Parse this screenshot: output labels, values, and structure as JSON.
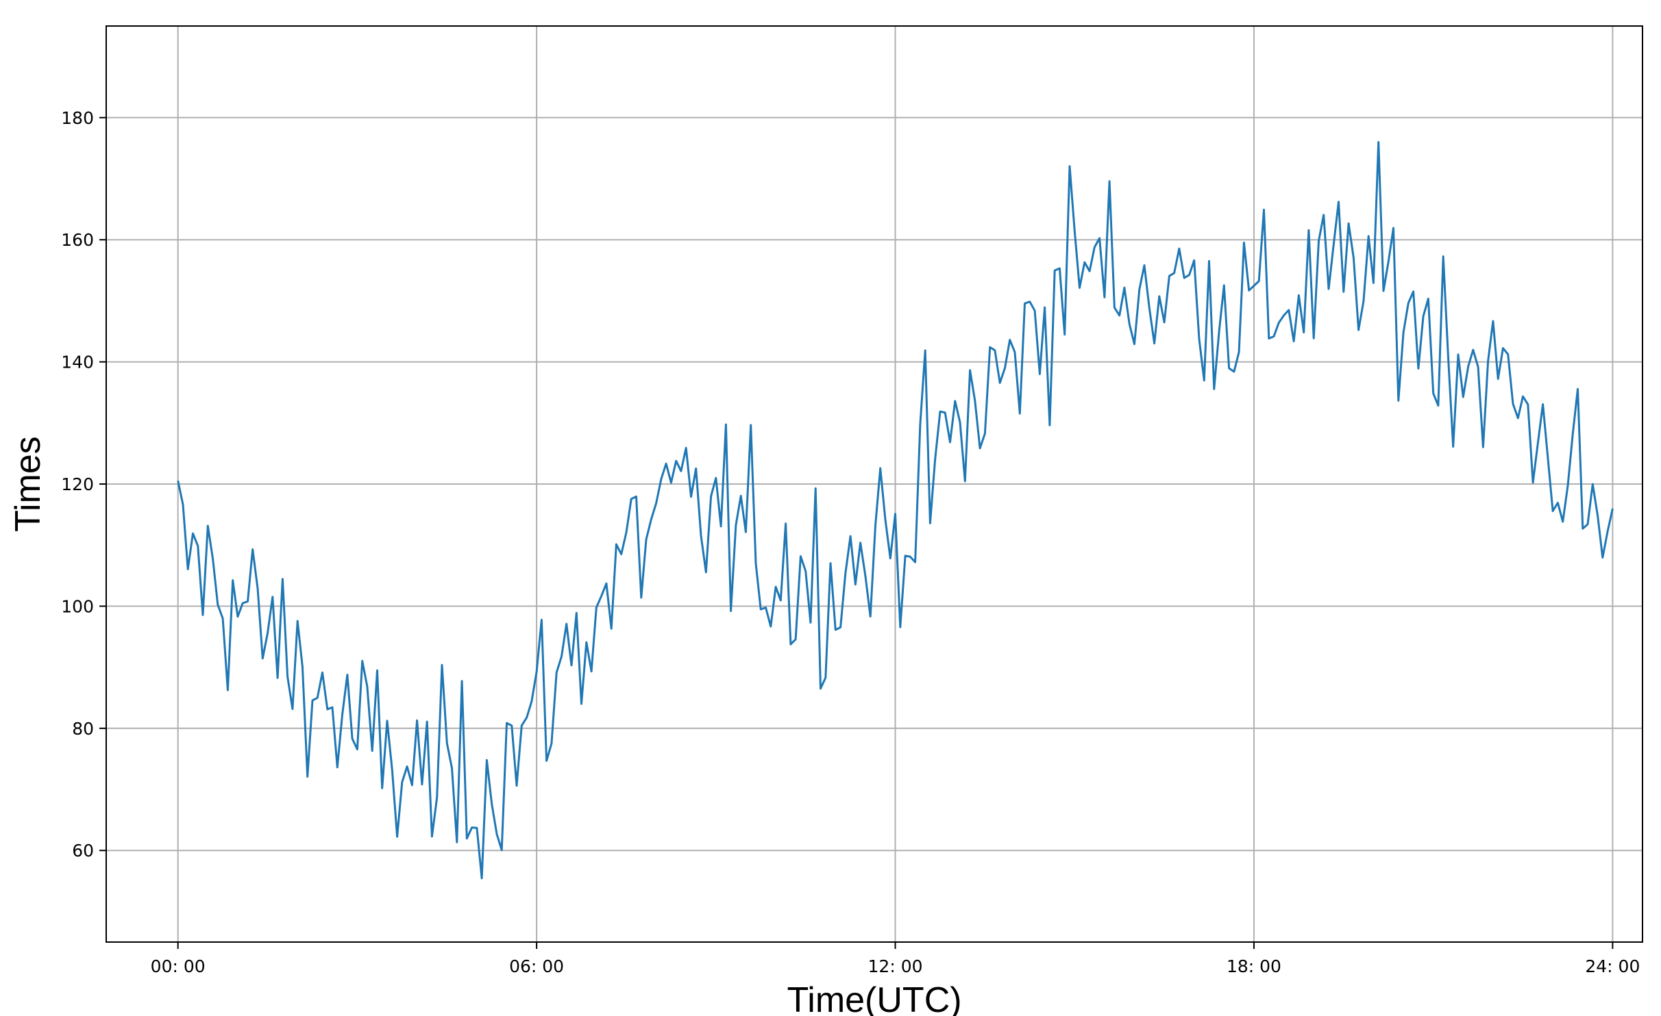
{
  "chart_data": {
    "type": "line",
    "title": "",
    "xlabel": "Time(UTC)",
    "ylabel": "Times",
    "x_range_hours": [
      0,
      24
    ],
    "xlim_hours": [
      -1.2,
      24.5
    ],
    "ylim": [
      45,
      195
    ],
    "grid": true,
    "x_ticks": [
      {
        "hour": 0,
        "label": "00: 00"
      },
      {
        "hour": 6,
        "label": "06: 00"
      },
      {
        "hour": 12,
        "label": "12: 00"
      },
      {
        "hour": 18,
        "label": "18: 00"
      },
      {
        "hour": 24,
        "label": "24: 00"
      }
    ],
    "y_ticks": [
      60,
      80,
      100,
      120,
      140,
      160,
      180
    ],
    "series": [
      {
        "color": "#1f77b4",
        "sample_interval_minutes": 5,
        "trend_hours": [
          0,
          1,
          2,
          3,
          4,
          5,
          6,
          7,
          8,
          9,
          10,
          11,
          12,
          13,
          14,
          15,
          16,
          17,
          18,
          19,
          20,
          21,
          22,
          23,
          24
        ],
        "trend_values": [
          110,
          100,
          90,
          78,
          72,
          70,
          82,
          100,
          115,
          115,
          106,
          105,
          112,
          128,
          140,
          157,
          152,
          152,
          148,
          152,
          155,
          145,
          138,
          125,
          110
        ],
        "noise_amplitude": 11,
        "observed_min": 52,
        "observed_max": 188
      }
    ]
  }
}
